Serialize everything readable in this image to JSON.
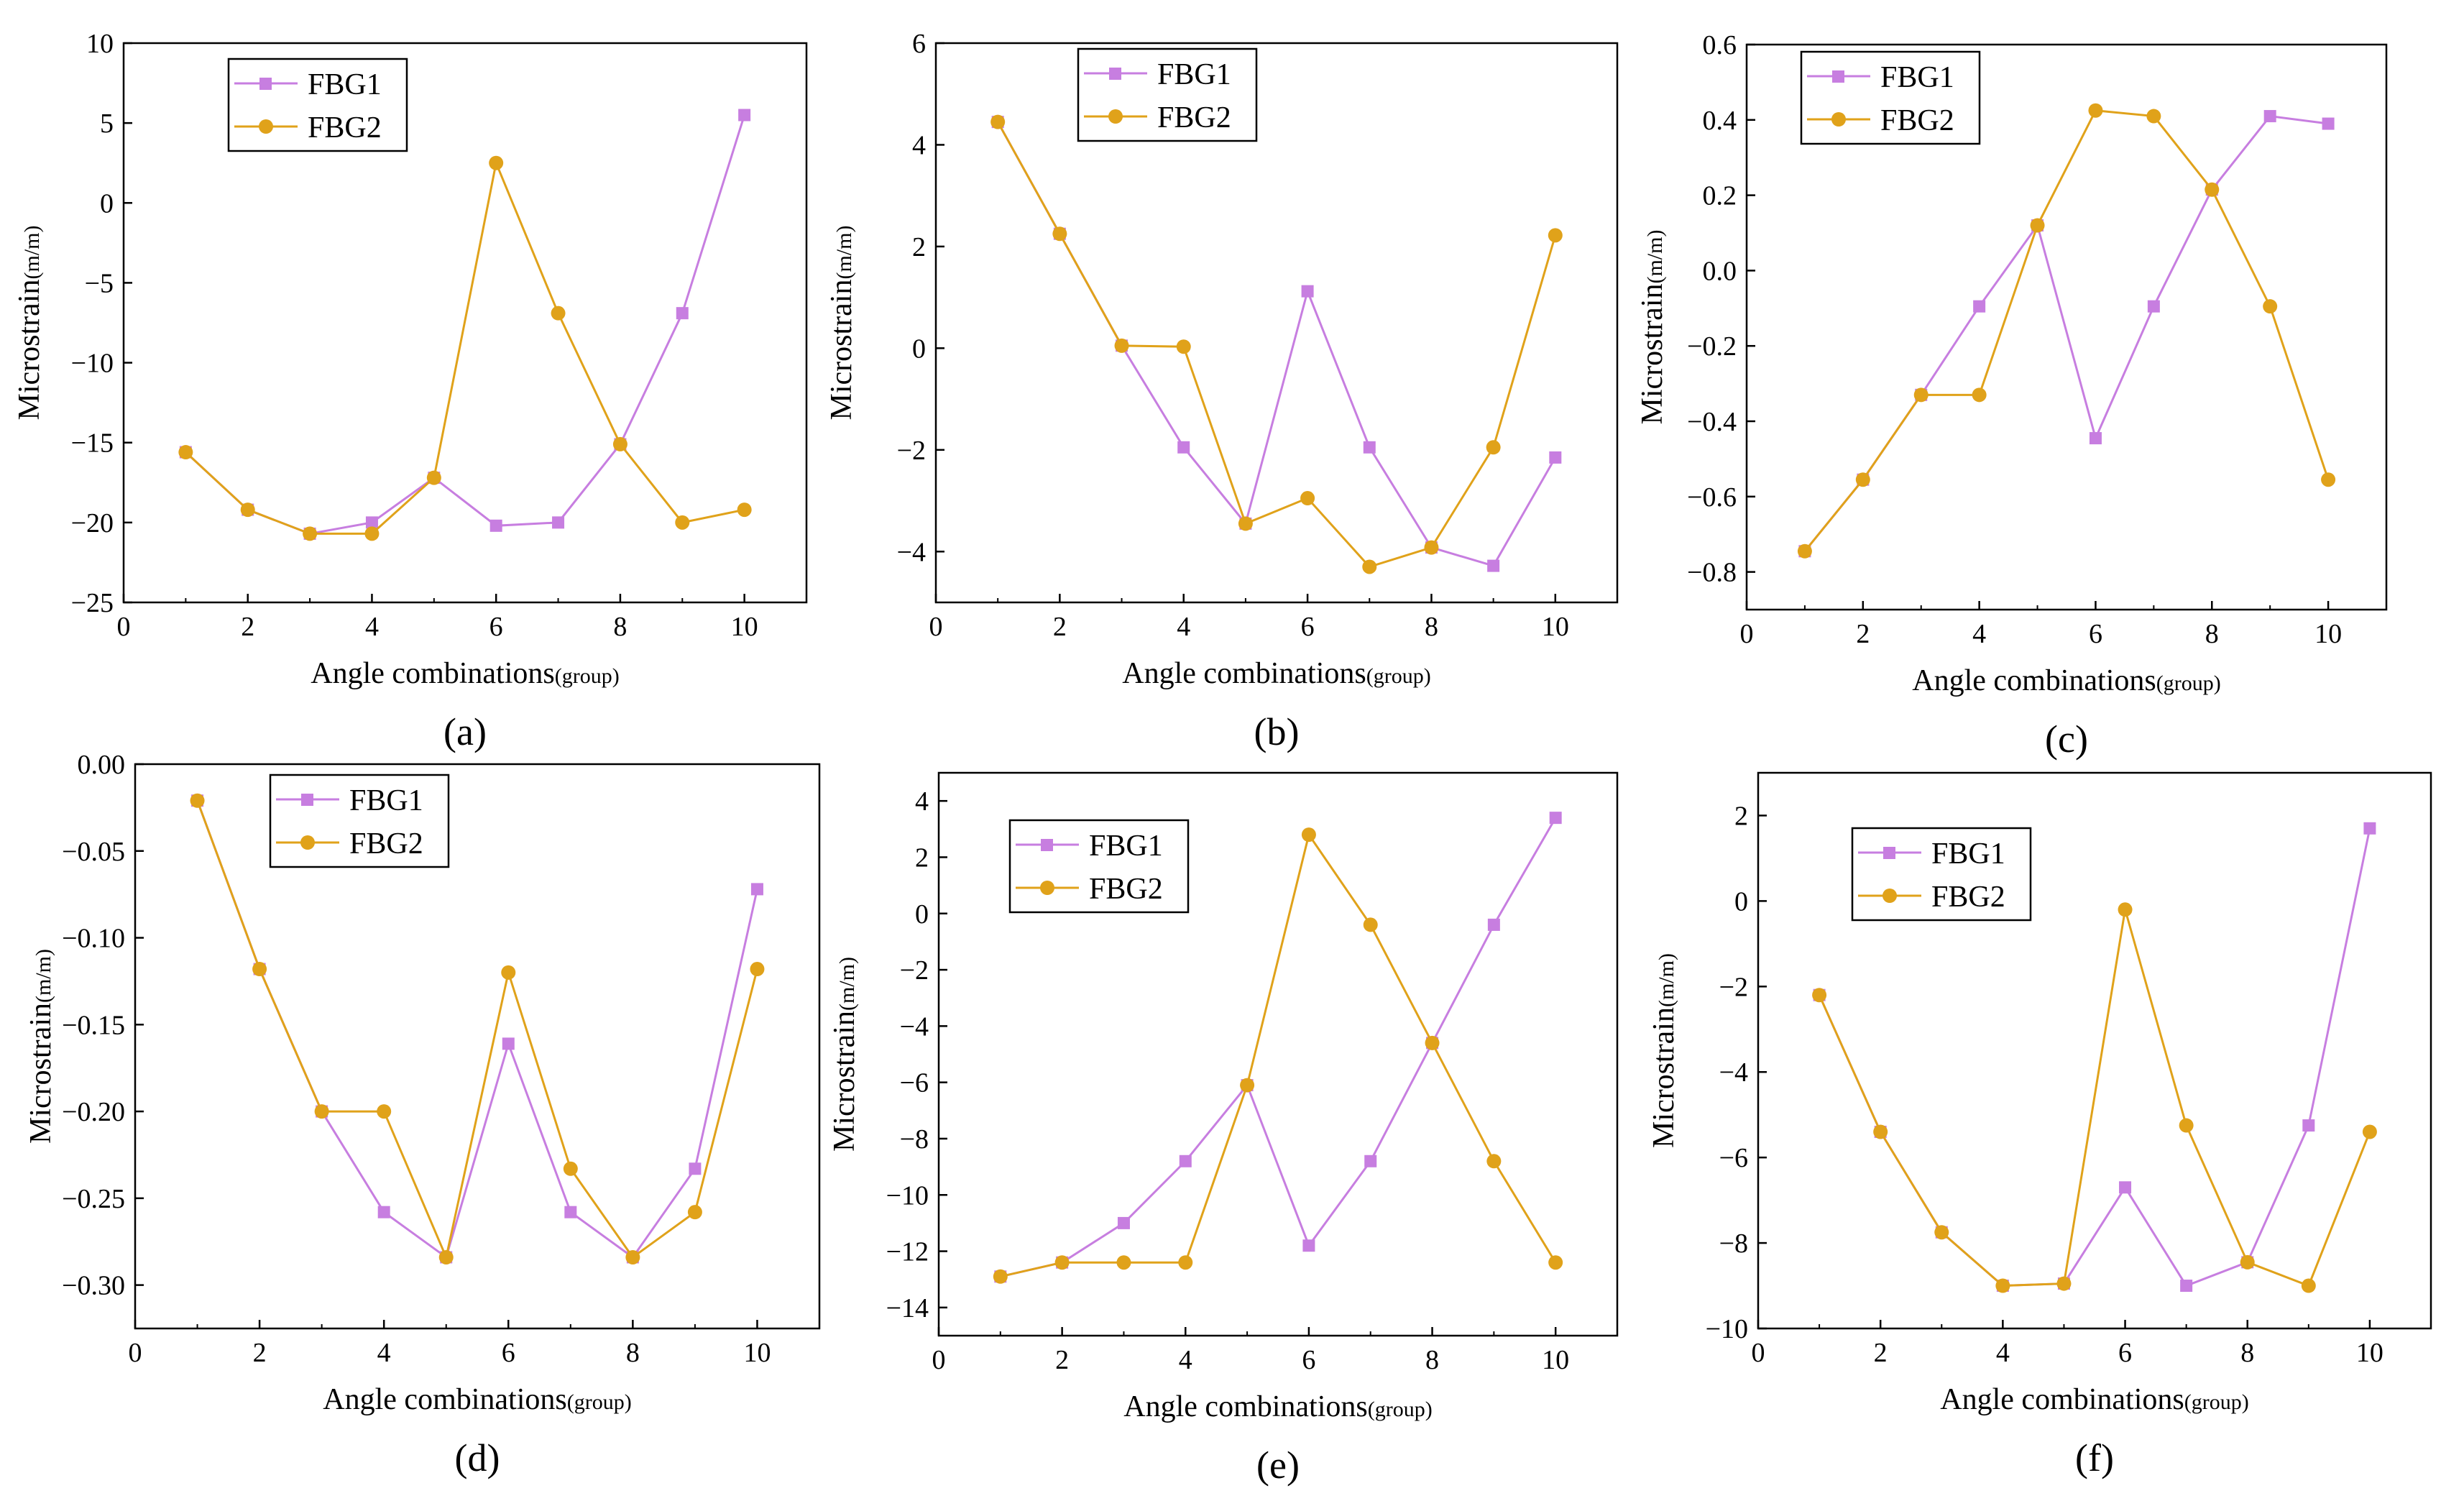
{
  "figure": {
    "series_colors": {
      "FBG1": "#c77ee0",
      "FBG2": "#e0a21a"
    },
    "axis_color": "#000000"
  },
  "chart_data": [
    {
      "type": "line",
      "panel_label": "(a)",
      "xlabel": "Angle combinations",
      "xlabel_unit": "(group)",
      "ylabel": "Microstrain",
      "ylabel_unit": "(m/m)",
      "xlim": [
        0,
        11
      ],
      "ylim": [
        -25,
        10
      ],
      "xticks": [
        0,
        2,
        4,
        6,
        8,
        10
      ],
      "yticks": [
        -25,
        -20,
        -15,
        -10,
        -5,
        0,
        5,
        10
      ],
      "ytick_labels": [
        "−25",
        "−20",
        "−15",
        "−10",
        "−5",
        "0",
        "5",
        "10"
      ],
      "legend": "top-left",
      "x": [
        1,
        2,
        3,
        4,
        5,
        6,
        7,
        8,
        9,
        10
      ],
      "series": [
        {
          "name": "FBG1",
          "marker": "square",
          "values": [
            -15.6,
            -19.2,
            -20.7,
            -20.0,
            -17.2,
            -20.2,
            -20.0,
            -15.1,
            -6.9,
            5.5
          ]
        },
        {
          "name": "FBG2",
          "marker": "circle",
          "values": [
            -15.6,
            -19.2,
            -20.7,
            -20.7,
            -17.2,
            2.5,
            -6.9,
            -15.1,
            -20.0,
            -19.2
          ]
        }
      ]
    },
    {
      "type": "line",
      "panel_label": "(b)",
      "xlabel": "Angle combinations",
      "xlabel_unit": "(group)",
      "ylabel": "Microstrain",
      "ylabel_unit": "(m/m)",
      "xlim": [
        0,
        11
      ],
      "ylim": [
        -5,
        6
      ],
      "xticks": [
        0,
        2,
        4,
        6,
        8,
        10
      ],
      "yticks": [
        -4,
        -2,
        0,
        2,
        4,
        6
      ],
      "ytick_labels": [
        "−4",
        "−2",
        "0",
        "2",
        "4",
        "6"
      ],
      "legend": "top-center",
      "x": [
        1,
        2,
        3,
        4,
        5,
        6,
        7,
        8,
        9,
        10
      ],
      "series": [
        {
          "name": "FBG1",
          "marker": "square",
          "values": [
            4.45,
            2.25,
            0.05,
            -1.95,
            -3.45,
            1.12,
            -1.95,
            -3.92,
            -4.28,
            -2.15
          ]
        },
        {
          "name": "FBG2",
          "marker": "circle",
          "values": [
            4.45,
            2.25,
            0.05,
            0.03,
            -3.45,
            -2.95,
            -4.3,
            -3.92,
            -1.95,
            2.22
          ]
        }
      ]
    },
    {
      "type": "line",
      "panel_label": "(c)",
      "xlabel": "Angle combinations",
      "xlabel_unit": "(group)",
      "ylabel": "Microstrain",
      "ylabel_unit": "(m/m)",
      "xlim": [
        0,
        11
      ],
      "ylim": [
        -0.9,
        0.6
      ],
      "xticks": [
        0,
        2,
        4,
        6,
        8,
        10
      ],
      "yticks": [
        -0.8,
        -0.6,
        -0.4,
        -0.2,
        0.0,
        0.2,
        0.4,
        0.6
      ],
      "ytick_labels": [
        "−0.8",
        "−0.6",
        "−0.4",
        "−0.2",
        "0.0",
        "0.2",
        "0.4",
        "0.6"
      ],
      "legend": "top-left",
      "x": [
        1,
        2,
        3,
        4,
        5,
        6,
        7,
        8,
        9,
        10
      ],
      "series": [
        {
          "name": "FBG1",
          "marker": "square",
          "values": [
            -0.745,
            -0.555,
            -0.33,
            -0.095,
            0.12,
            -0.445,
            -0.095,
            0.215,
            0.41,
            0.39
          ]
        },
        {
          "name": "FBG2",
          "marker": "circle",
          "values": [
            -0.745,
            -0.555,
            -0.33,
            -0.33,
            0.12,
            0.425,
            0.41,
            0.215,
            -0.095,
            -0.555
          ]
        }
      ]
    },
    {
      "type": "line",
      "panel_label": "(d)",
      "xlabel": "Angle combinations",
      "xlabel_unit": "(group)",
      "ylabel": "Microstrain",
      "ylabel_unit": "(m/m)",
      "xlim": [
        0,
        11
      ],
      "ylim": [
        -0.325,
        0.0
      ],
      "xticks": [
        0,
        2,
        4,
        6,
        8,
        10
      ],
      "yticks": [
        -0.3,
        -0.25,
        -0.2,
        -0.15,
        -0.1,
        -0.05,
        0.0
      ],
      "ytick_labels": [
        "−0.30",
        "−0.25",
        "−0.20",
        "−0.15",
        "−0.10",
        "−0.05",
        "0.00"
      ],
      "legend": "top-center",
      "x": [
        1,
        2,
        3,
        4,
        5,
        6,
        7,
        8,
        9,
        10
      ],
      "series": [
        {
          "name": "FBG1",
          "marker": "square",
          "values": [
            -0.021,
            -0.118,
            -0.2,
            -0.258,
            -0.284,
            -0.161,
            -0.258,
            -0.284,
            -0.233,
            -0.072
          ]
        },
        {
          "name": "FBG2",
          "marker": "circle",
          "values": [
            -0.021,
            -0.118,
            -0.2,
            -0.2,
            -0.284,
            -0.12,
            -0.233,
            -0.284,
            -0.258,
            -0.118
          ]
        }
      ]
    },
    {
      "type": "line",
      "panel_label": "(e)",
      "xlabel": "Angle combinations",
      "xlabel_unit": "(group)",
      "ylabel": "Microstrain",
      "ylabel_unit": "(m/m)",
      "xlim": [
        0,
        11
      ],
      "ylim": [
        -15,
        5
      ],
      "xticks": [
        0,
        2,
        4,
        6,
        8,
        10
      ],
      "yticks": [
        -14,
        -12,
        -10,
        -8,
        -6,
        -4,
        -2,
        0,
        2,
        4
      ],
      "ytick_labels": [
        "−14",
        "−12",
        "−10",
        "−8",
        "−6",
        "−4",
        "−2",
        "0",
        "2",
        "4"
      ],
      "legend": "top-left",
      "x": [
        1,
        2,
        3,
        4,
        5,
        6,
        7,
        8,
        9,
        10
      ],
      "series": [
        {
          "name": "FBG1",
          "marker": "square",
          "values": [
            -12.9,
            -12.4,
            -11.0,
            -8.8,
            -6.1,
            -11.8,
            -8.8,
            -4.6,
            -0.4,
            3.4
          ]
        },
        {
          "name": "FBG2",
          "marker": "circle",
          "values": [
            -12.9,
            -12.4,
            -12.4,
            -12.4,
            -6.1,
            2.8,
            -0.4,
            -4.6,
            -8.8,
            -12.4
          ]
        }
      ]
    },
    {
      "type": "line",
      "panel_label": "(f)",
      "xlabel": "Angle combinations",
      "xlabel_unit": "(group)",
      "ylabel": "Microstrain",
      "ylabel_unit": "(m/m)",
      "xlim": [
        0,
        11
      ],
      "ylim": [
        -10,
        3
      ],
      "xticks": [
        0,
        2,
        4,
        6,
        8,
        10
      ],
      "yticks": [
        -10,
        -8,
        -6,
        -4,
        -2,
        0,
        2
      ],
      "ytick_labels": [
        "−10",
        "−8",
        "−6",
        "−4",
        "−2",
        "0",
        "2"
      ],
      "legend": "top-left",
      "x": [
        1,
        2,
        3,
        4,
        5,
        6,
        7,
        8,
        9,
        10
      ],
      "series": [
        {
          "name": "FBG1",
          "marker": "square",
          "values": [
            -2.2,
            -5.4,
            -7.75,
            -9.0,
            -8.95,
            -6.7,
            -9.0,
            -8.45,
            -5.25,
            1.7
          ]
        },
        {
          "name": "FBG2",
          "marker": "circle",
          "values": [
            -2.2,
            -5.4,
            -7.75,
            -9.0,
            -8.95,
            -0.2,
            -5.25,
            -8.45,
            -9.0,
            -5.4
          ]
        }
      ]
    }
  ]
}
